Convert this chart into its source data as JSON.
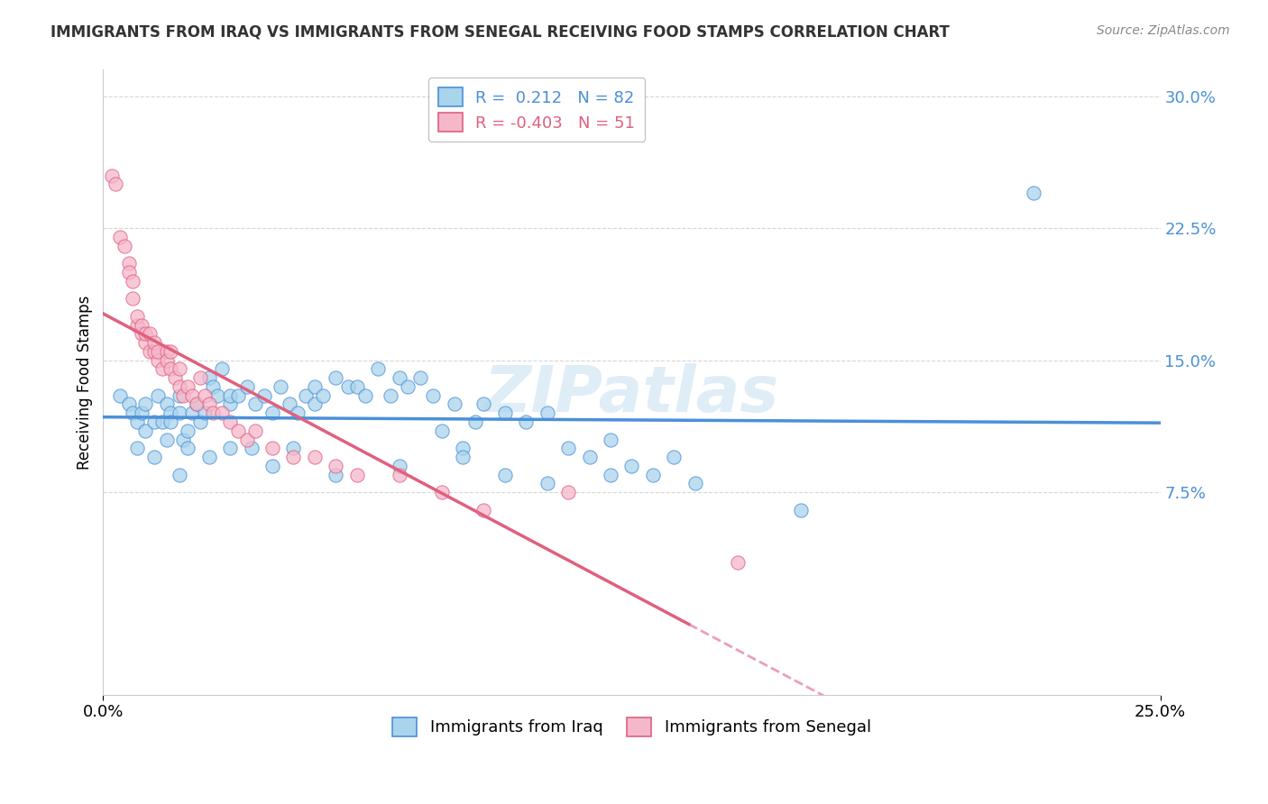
{
  "title": "IMMIGRANTS FROM IRAQ VS IMMIGRANTS FROM SENEGAL RECEIVING FOOD STAMPS CORRELATION CHART",
  "source": "Source: ZipAtlas.com",
  "ylabel": "Receiving Food Stamps",
  "yticks": [
    "7.5%",
    "15.0%",
    "22.5%",
    "30.0%"
  ],
  "ytick_values": [
    0.075,
    0.15,
    0.225,
    0.3
  ],
  "xlim": [
    0.0,
    0.25
  ],
  "ylim": [
    -0.04,
    0.315
  ],
  "iraq_R": 0.212,
  "iraq_N": 82,
  "senegal_R": -0.403,
  "senegal_N": 51,
  "iraq_color": "#aad4ec",
  "senegal_color": "#f5b8cb",
  "iraq_line_color": "#4a90d9",
  "senegal_line_color": "#e0607e",
  "watermark": "ZIPatlas",
  "legend_iraq": "Immigrants from Iraq",
  "legend_senegal": "Immigrants from Senegal",
  "iraq_x": [
    0.004,
    0.006,
    0.007,
    0.008,
    0.009,
    0.01,
    0.01,
    0.012,
    0.013,
    0.014,
    0.015,
    0.016,
    0.016,
    0.018,
    0.018,
    0.019,
    0.02,
    0.021,
    0.022,
    0.023,
    0.024,
    0.025,
    0.026,
    0.027,
    0.028,
    0.03,
    0.03,
    0.032,
    0.034,
    0.036,
    0.038,
    0.04,
    0.042,
    0.044,
    0.046,
    0.048,
    0.05,
    0.05,
    0.052,
    0.055,
    0.058,
    0.06,
    0.062,
    0.065,
    0.068,
    0.07,
    0.072,
    0.075,
    0.078,
    0.08,
    0.083,
    0.085,
    0.088,
    0.09,
    0.095,
    0.1,
    0.105,
    0.11,
    0.115,
    0.12,
    0.125,
    0.13,
    0.135,
    0.14,
    0.008,
    0.012,
    0.015,
    0.018,
    0.02,
    0.025,
    0.03,
    0.035,
    0.04,
    0.045,
    0.055,
    0.07,
    0.085,
    0.095,
    0.105,
    0.12,
    0.165,
    0.22
  ],
  "iraq_y": [
    0.13,
    0.125,
    0.12,
    0.115,
    0.12,
    0.11,
    0.125,
    0.115,
    0.13,
    0.115,
    0.125,
    0.12,
    0.115,
    0.12,
    0.13,
    0.105,
    0.11,
    0.12,
    0.125,
    0.115,
    0.12,
    0.14,
    0.135,
    0.13,
    0.145,
    0.125,
    0.13,
    0.13,
    0.135,
    0.125,
    0.13,
    0.12,
    0.135,
    0.125,
    0.12,
    0.13,
    0.125,
    0.135,
    0.13,
    0.14,
    0.135,
    0.135,
    0.13,
    0.145,
    0.13,
    0.14,
    0.135,
    0.14,
    0.13,
    0.11,
    0.125,
    0.1,
    0.115,
    0.125,
    0.12,
    0.115,
    0.12,
    0.1,
    0.095,
    0.105,
    0.09,
    0.085,
    0.095,
    0.08,
    0.1,
    0.095,
    0.105,
    0.085,
    0.1,
    0.095,
    0.1,
    0.1,
    0.09,
    0.1,
    0.085,
    0.09,
    0.095,
    0.085,
    0.08,
    0.085,
    0.065,
    0.245
  ],
  "senegal_x": [
    0.002,
    0.003,
    0.004,
    0.005,
    0.006,
    0.006,
    0.007,
    0.007,
    0.008,
    0.008,
    0.009,
    0.009,
    0.01,
    0.01,
    0.011,
    0.011,
    0.012,
    0.012,
    0.013,
    0.013,
    0.014,
    0.015,
    0.015,
    0.016,
    0.016,
    0.017,
    0.018,
    0.018,
    0.019,
    0.02,
    0.021,
    0.022,
    0.023,
    0.024,
    0.025,
    0.026,
    0.028,
    0.03,
    0.032,
    0.034,
    0.036,
    0.04,
    0.045,
    0.05,
    0.055,
    0.06,
    0.07,
    0.08,
    0.09,
    0.11,
    0.15
  ],
  "senegal_y": [
    0.255,
    0.25,
    0.22,
    0.215,
    0.205,
    0.2,
    0.185,
    0.195,
    0.17,
    0.175,
    0.165,
    0.17,
    0.16,
    0.165,
    0.155,
    0.165,
    0.155,
    0.16,
    0.15,
    0.155,
    0.145,
    0.155,
    0.15,
    0.145,
    0.155,
    0.14,
    0.135,
    0.145,
    0.13,
    0.135,
    0.13,
    0.125,
    0.14,
    0.13,
    0.125,
    0.12,
    0.12,
    0.115,
    0.11,
    0.105,
    0.11,
    0.1,
    0.095,
    0.095,
    0.09,
    0.085,
    0.085,
    0.075,
    0.065,
    0.075,
    0.035
  ]
}
